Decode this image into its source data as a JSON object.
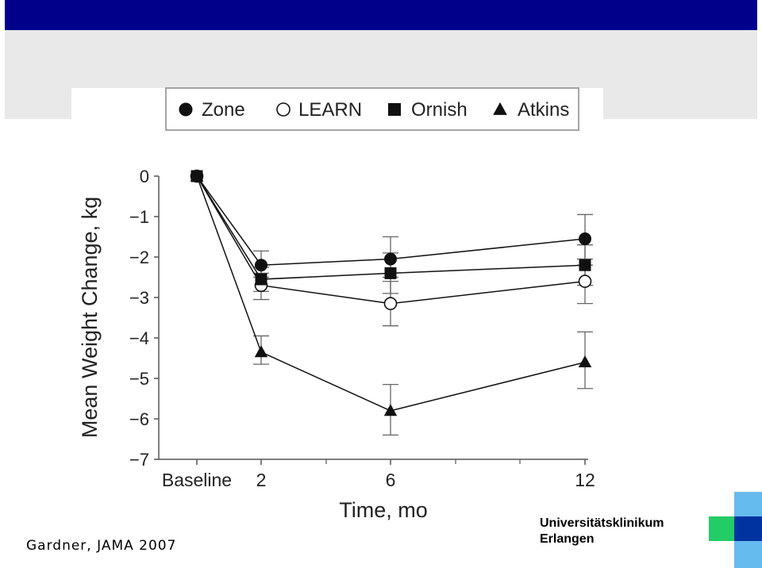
{
  "chart_data": {
    "type": "line",
    "categories": [
      "Baseline",
      "2",
      "6",
      "12"
    ],
    "xlabel": "Time, mo",
    "ylabel": "Mean Weight Change, kg",
    "ylim": [
      -7,
      0
    ],
    "yticks": [
      0,
      -1,
      -2,
      -3,
      -4,
      -5,
      -6,
      -7
    ],
    "ytick_labels": [
      "0",
      "−1",
      "−2",
      "−3",
      "−4",
      "−5",
      "−6",
      "−7"
    ],
    "grid": false,
    "legend_position": "top",
    "series": [
      {
        "name": "Zone",
        "marker": "filled-circle",
        "values": [
          0,
          -2.2,
          -2.05,
          -1.55
        ],
        "err_low": [
          0,
          -2.5,
          -2.5,
          -2.2
        ],
        "err_high": [
          0,
          -1.85,
          -1.5,
          -0.95
        ]
      },
      {
        "name": "LEARN",
        "marker": "open-circle",
        "values": [
          0,
          -2.7,
          -3.15,
          -2.6
        ],
        "err_low": [
          0,
          -3.05,
          -3.7,
          -3.15
        ],
        "err_high": [
          0,
          -2.4,
          -2.6,
          -2.05
        ]
      },
      {
        "name": "Ornish",
        "marker": "filled-square",
        "values": [
          0,
          -2.55,
          -2.4,
          -2.2
        ],
        "err_low": [
          0,
          -2.85,
          -2.9,
          -2.7
        ],
        "err_high": [
          0,
          -2.25,
          -1.9,
          -1.7
        ]
      },
      {
        "name": "Atkins",
        "marker": "filled-triangle",
        "values": [
          0,
          -4.35,
          -5.8,
          -4.6
        ],
        "err_low": [
          0,
          -4.65,
          -6.4,
          -5.25
        ],
        "err_high": [
          0,
          -3.95,
          -5.15,
          -3.85
        ]
      }
    ]
  },
  "citation": "Gardner, JAMA 2007",
  "institution": {
    "line1": "Universitätsklinikum",
    "line2": "Erlangen"
  },
  "colors": {
    "top_bar": "#00008b",
    "band": "#e9e9e9",
    "logo_blue": "#0033a0",
    "logo_light": "#66bbee",
    "logo_green": "#22cc66"
  }
}
